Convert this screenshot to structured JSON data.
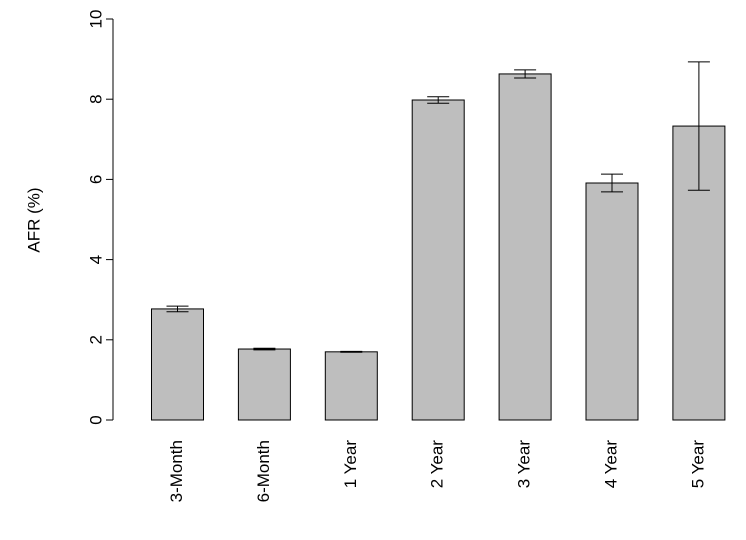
{
  "chart_data": {
    "type": "bar",
    "y_label": "AFR (%)",
    "categories": [
      "3-Month",
      "6-Month",
      "1 Year",
      "2 Year",
      "3 Year",
      "4 Year",
      "5 Year"
    ],
    "values": [
      2.77,
      1.77,
      1.7,
      7.98,
      8.63,
      5.91,
      7.33
    ],
    "errors": [
      0.07,
      0.02,
      0.01,
      0.08,
      0.1,
      0.22,
      1.6
    ],
    "color": "#bebebe",
    "ylim": [
      0,
      10
    ],
    "yticks": [
      0,
      2,
      4,
      6,
      8,
      10
    ],
    "grid": false
  }
}
